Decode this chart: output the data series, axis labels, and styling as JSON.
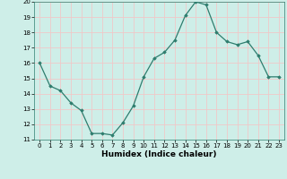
{
  "x": [
    0,
    1,
    2,
    3,
    4,
    5,
    6,
    7,
    8,
    9,
    10,
    11,
    12,
    13,
    14,
    15,
    16,
    17,
    18,
    19,
    20,
    21,
    22,
    23
  ],
  "y": [
    16.0,
    14.5,
    14.2,
    13.4,
    12.9,
    11.4,
    11.4,
    11.3,
    12.1,
    13.2,
    15.1,
    16.3,
    16.7,
    17.5,
    19.1,
    20.0,
    19.8,
    18.0,
    17.4,
    17.2,
    17.4,
    16.5,
    15.1,
    15.1
  ],
  "xlabel": "Humidex (Indice chaleur)",
  "ylim": [
    11,
    20
  ],
  "xlim": [
    -0.5,
    23.5
  ],
  "yticks": [
    11,
    12,
    13,
    14,
    15,
    16,
    17,
    18,
    19,
    20
  ],
  "xticks": [
    0,
    1,
    2,
    3,
    4,
    5,
    6,
    7,
    8,
    9,
    10,
    11,
    12,
    13,
    14,
    15,
    16,
    17,
    18,
    19,
    20,
    21,
    22,
    23
  ],
  "line_color": "#2e7d6e",
  "marker": "D",
  "marker_size": 1.8,
  "bg_color": "#ceeee8",
  "grid_color": "#f0c8c8",
  "tick_label_fontsize": 5.0,
  "xlabel_fontsize": 6.5,
  "linewidth": 0.9
}
